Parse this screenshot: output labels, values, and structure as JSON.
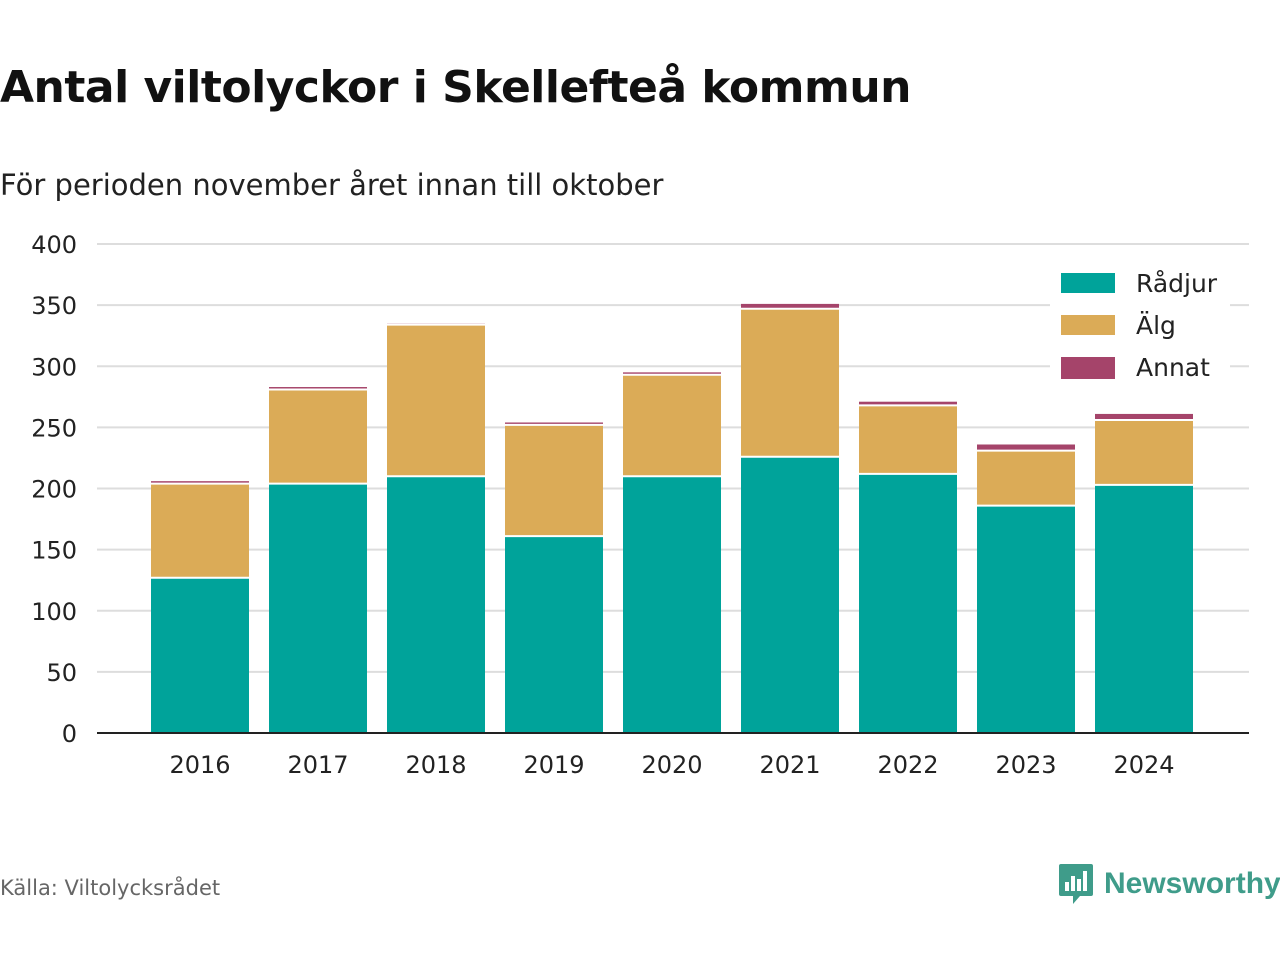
{
  "title": "Antal viltolyckor i Skellefteå kommun",
  "subtitle": "För perioden november året innan till oktober",
  "source": "Källa: Viltolycksrådet",
  "brand": {
    "name": "Newsworthy",
    "icon": "bar-chart-speech-bubble-icon",
    "color": "#3f9c8a"
  },
  "chart_data": {
    "type": "bar",
    "stacked": true,
    "categories": [
      "2016",
      "2017",
      "2018",
      "2019",
      "2020",
      "2021",
      "2022",
      "2023",
      "2024"
    ],
    "series": [
      {
        "name": "Rådjur",
        "color": "#00a39a",
        "values": [
          127,
          204,
          210,
          161,
          210,
          226,
          212,
          186,
          203
        ]
      },
      {
        "name": "Älg",
        "color": "#dbab57",
        "values": [
          77,
          77,
          124,
          91,
          83,
          121,
          56,
          45,
          53
        ]
      },
      {
        "name": "Annat",
        "color": "#a5446a",
        "values": [
          2,
          2,
          1,
          2,
          2,
          4,
          3,
          5,
          5
        ]
      }
    ],
    "ylim": [
      0,
      400
    ],
    "yticks": [
      0,
      50,
      100,
      150,
      200,
      250,
      300,
      350,
      400
    ],
    "grid": true,
    "legend": "top-right"
  }
}
